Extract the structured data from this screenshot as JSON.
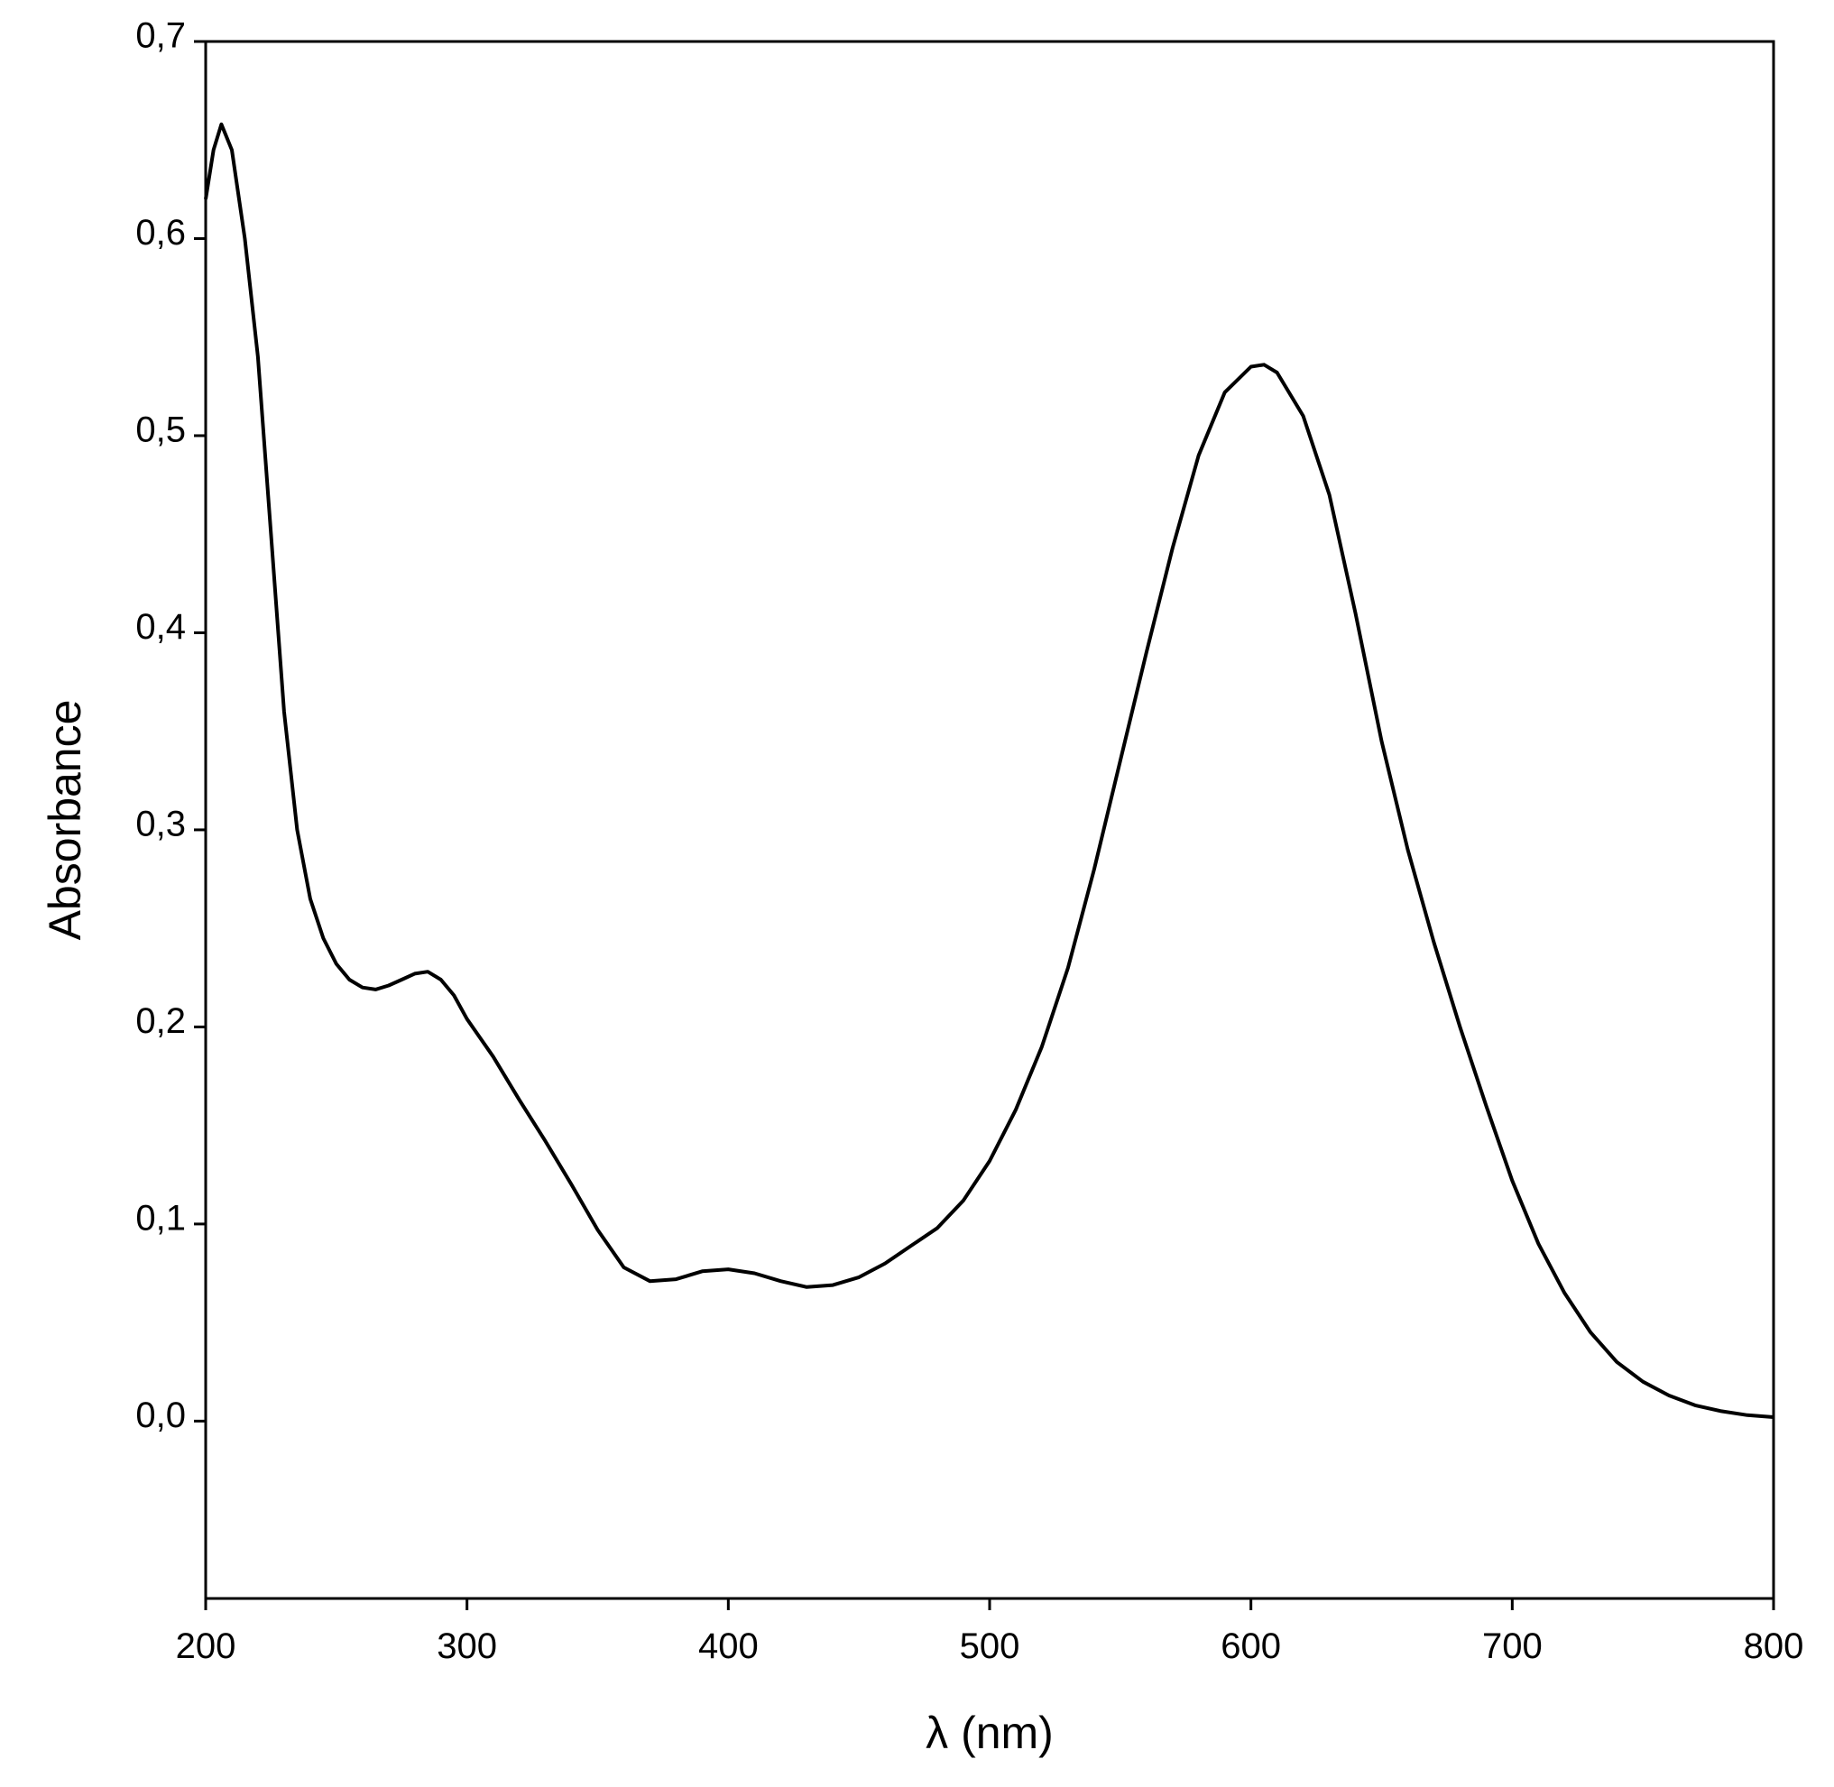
{
  "chart_data": {
    "type": "line",
    "xlabel": "λ (nm)",
    "ylabel": "Absorbance",
    "x": [
      200,
      203,
      206,
      210,
      215,
      220,
      225,
      230,
      235,
      240,
      245,
      250,
      255,
      260,
      265,
      270,
      275,
      280,
      285,
      290,
      295,
      300,
      310,
      320,
      330,
      340,
      350,
      360,
      370,
      380,
      390,
      400,
      410,
      420,
      430,
      440,
      450,
      460,
      470,
      480,
      490,
      500,
      510,
      520,
      530,
      540,
      550,
      560,
      570,
      580,
      590,
      600,
      605,
      610,
      620,
      630,
      640,
      650,
      660,
      670,
      680,
      690,
      700,
      710,
      720,
      730,
      740,
      750,
      760,
      770,
      780,
      790,
      800
    ],
    "values": [
      0.62,
      0.645,
      0.658,
      0.645,
      0.6,
      0.54,
      0.45,
      0.36,
      0.3,
      0.265,
      0.245,
      0.232,
      0.224,
      0.22,
      0.219,
      0.221,
      0.224,
      0.227,
      0.228,
      0.224,
      0.216,
      0.204,
      0.185,
      0.163,
      0.142,
      0.12,
      0.097,
      0.078,
      0.071,
      0.072,
      0.076,
      0.077,
      0.075,
      0.071,
      0.068,
      0.069,
      0.073,
      0.08,
      0.089,
      0.098,
      0.112,
      0.132,
      0.158,
      0.19,
      0.23,
      0.28,
      0.335,
      0.39,
      0.443,
      0.49,
      0.522,
      0.535,
      0.536,
      0.532,
      0.51,
      0.47,
      0.41,
      0.345,
      0.29,
      0.243,
      0.2,
      0.16,
      0.122,
      0.09,
      0.065,
      0.045,
      0.03,
      0.02,
      0.013,
      0.008,
      0.005,
      0.003,
      0.002
    ],
    "color": "#000000",
    "xlim": [
      200,
      800
    ],
    "xticks": [
      200,
      300,
      400,
      500,
      600,
      700,
      800
    ],
    "ylim": [
      -0.09,
      0.7
    ],
    "yticks": [
      {
        "value": 0.0,
        "label": "0,0"
      },
      {
        "value": 0.1,
        "label": "0,1"
      },
      {
        "value": 0.2,
        "label": "0,2"
      },
      {
        "value": 0.3,
        "label": "0,3"
      },
      {
        "value": 0.4,
        "label": "0,4"
      },
      {
        "value": 0.5,
        "label": "0,5"
      },
      {
        "value": 0.6,
        "label": "0,6"
      },
      {
        "value": 0.7,
        "label": "0,7"
      }
    ],
    "grid": false
  }
}
